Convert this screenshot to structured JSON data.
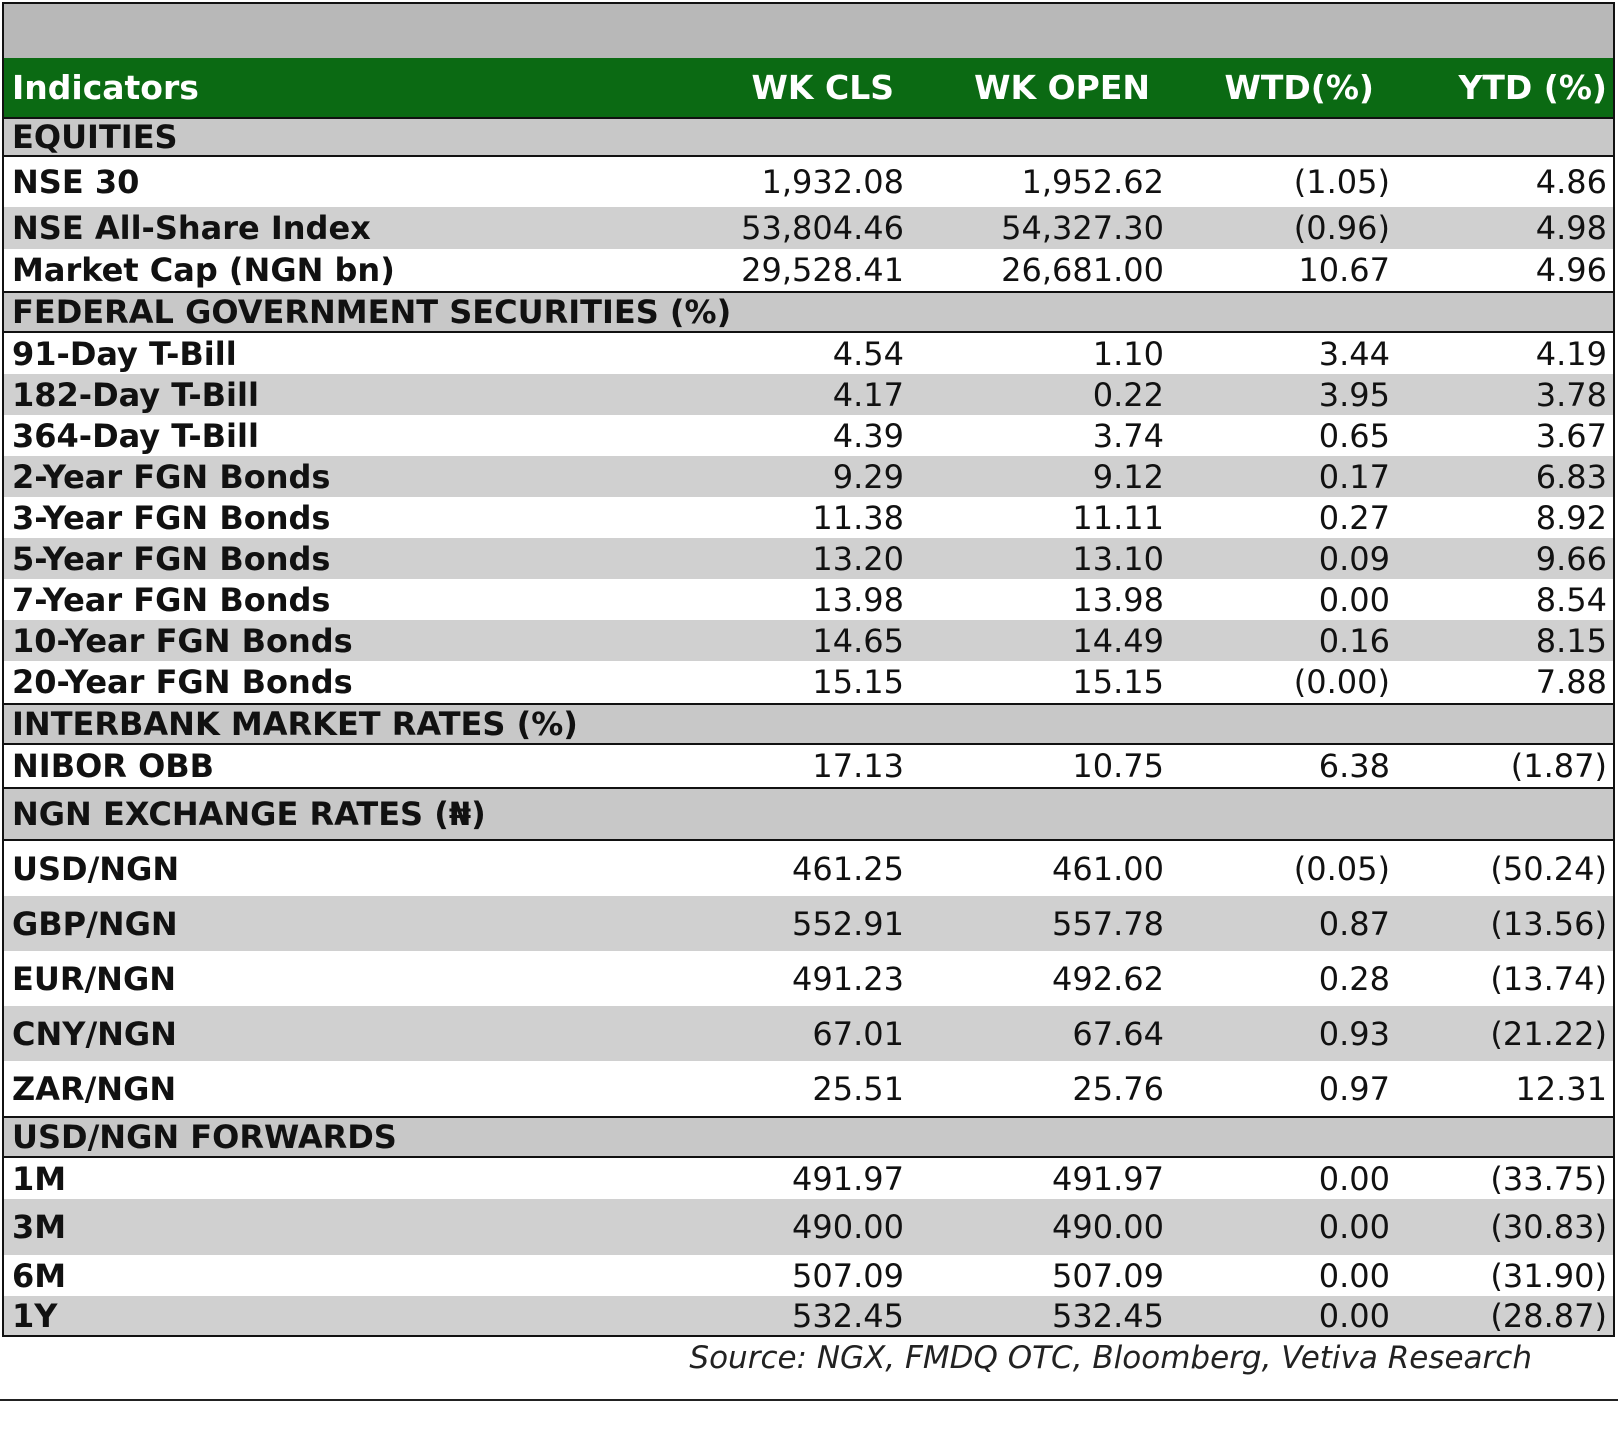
{
  "header": {
    "indicators": "Indicators",
    "wk_cls": "WK CLS",
    "wk_open": "WK OPEN",
    "wtd": "WTD(%)",
    "ytd": "YTD (%)"
  },
  "sections": {
    "equities": "EQUITIES",
    "fgs": "FEDERAL GOVERNMENT SECURITIES (%)",
    "interbank": "INTERBANK MARKET RATES (%)",
    "fx": "NGN EXCHANGE RATES (₦)",
    "forwards": "USD/NGN FORWARDS"
  },
  "equities": [
    {
      "name": "NSE 30",
      "cls": "1,932.08",
      "open": "1,952.62",
      "wtd": "(1.05)",
      "ytd": "4.86"
    },
    {
      "name": "NSE All-Share Index",
      "cls": "53,804.46",
      "open": "54,327.30",
      "wtd": "(0.96)",
      "ytd": "4.98"
    },
    {
      "name": "Market Cap (NGN bn)",
      "cls": "29,528.41",
      "open": "26,681.00",
      "wtd": "10.67",
      "ytd": "4.96"
    }
  ],
  "fgs": [
    {
      "name": "91-Day T-Bill",
      "cls": "4.54",
      "open": "1.10",
      "wtd": "3.44",
      "ytd": "4.19"
    },
    {
      "name": "182-Day T-Bill",
      "cls": "4.17",
      "open": "0.22",
      "wtd": "3.95",
      "ytd": "3.78"
    },
    {
      "name": "364-Day T-Bill",
      "cls": "4.39",
      "open": "3.74",
      "wtd": "0.65",
      "ytd": "3.67"
    },
    {
      "name": "2-Year FGN Bonds",
      "cls": "9.29",
      "open": "9.12",
      "wtd": "0.17",
      "ytd": "6.83"
    },
    {
      "name": "3-Year FGN Bonds",
      "cls": "11.38",
      "open": "11.11",
      "wtd": "0.27",
      "ytd": "8.92"
    },
    {
      "name": "5-Year FGN Bonds",
      "cls": "13.20",
      "open": "13.10",
      "wtd": "0.09",
      "ytd": "9.66"
    },
    {
      "name": "7-Year FGN Bonds",
      "cls": "13.98",
      "open": "13.98",
      "wtd": "0.00",
      "ytd": "8.54"
    },
    {
      "name": "10-Year FGN Bonds",
      "cls": "14.65",
      "open": "14.49",
      "wtd": "0.16",
      "ytd": "8.15"
    },
    {
      "name": "20-Year FGN Bonds",
      "cls": "15.15",
      "open": "15.15",
      "wtd": "(0.00)",
      "ytd": "7.88"
    }
  ],
  "interbank": [
    {
      "name": "NIBOR OBB",
      "cls": "17.13",
      "open": "10.75",
      "wtd": "6.38",
      "ytd": "(1.87)"
    }
  ],
  "fx": [
    {
      "name": "USD/NGN",
      "cls": "461.25",
      "open": "461.00",
      "wtd": "(0.05)",
      "ytd": "(50.24)"
    },
    {
      "name": "GBP/NGN",
      "cls": "552.91",
      "open": "557.78",
      "wtd": "0.87",
      "ytd": "(13.56)"
    },
    {
      "name": "EUR/NGN",
      "cls": "491.23",
      "open": "492.62",
      "wtd": "0.28",
      "ytd": "(13.74)"
    },
    {
      "name": "CNY/NGN",
      "cls": "67.01",
      "open": "67.64",
      "wtd": "0.93",
      "ytd": "(21.22)"
    },
    {
      "name": "ZAR/NGN",
      "cls": "25.51",
      "open": "25.76",
      "wtd": "0.97",
      "ytd": "12.31"
    }
  ],
  "forwards": [
    {
      "name": "1M",
      "cls": "491.97",
      "open": "491.97",
      "wtd": "0.00",
      "ytd": "(33.75)"
    },
    {
      "name": "3M",
      "cls": "490.00",
      "open": "490.00",
      "wtd": "0.00",
      "ytd": "(30.83)"
    },
    {
      "name": "6M",
      "cls": "507.09",
      "open": "507.09",
      "wtd": "0.00",
      "ytd": "(31.90)"
    },
    {
      "name": "1Y",
      "cls": "532.45",
      "open": "532.45",
      "wtd": "0.00",
      "ytd": "(28.87)"
    }
  ],
  "source": "Source: NGX, FMDQ OTC, Bloomberg, Vetiva Research"
}
